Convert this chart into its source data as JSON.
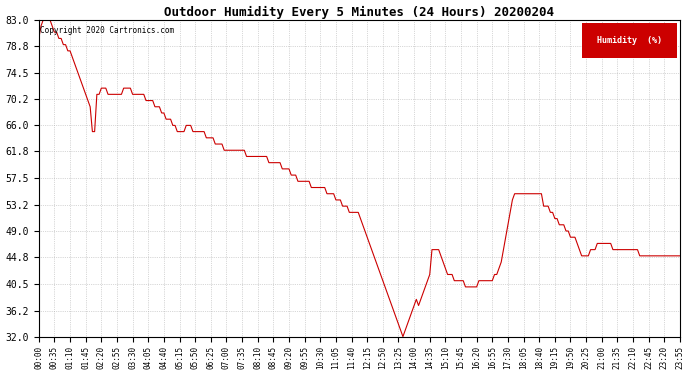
{
  "title": "Outdoor Humidity Every 5 Minutes (24 Hours) 20200204",
  "copyright_text": "Copyright 2020 Cartronics.com",
  "legend_label": "Humidity  (%)",
  "legend_color": "#cc0000",
  "line_color": "#cc0000",
  "background_color": "#ffffff",
  "grid_color": "#aaaaaa",
  "ylim": [
    32.0,
    83.0
  ],
  "yticks": [
    32.0,
    36.2,
    40.5,
    44.8,
    49.0,
    53.2,
    57.5,
    61.8,
    66.0,
    70.2,
    74.5,
    78.8,
    83.0
  ],
  "x_tick_step": 7,
  "humidity_data": [
    80,
    82,
    83,
    83,
    83,
    83,
    82,
    81,
    81,
    80,
    80,
    79,
    79,
    78,
    78,
    77,
    76,
    75,
    74,
    73,
    72,
    71,
    70,
    69,
    65,
    65,
    71,
    71,
    72,
    72,
    72,
    71,
    71,
    71,
    71,
    71,
    71,
    71,
    72,
    72,
    72,
    72,
    71,
    71,
    71,
    71,
    71,
    71,
    70,
    70,
    70,
    70,
    69,
    69,
    69,
    68,
    68,
    67,
    67,
    67,
    66,
    66,
    65,
    65,
    65,
    65,
    66,
    66,
    66,
    65,
    65,
    65,
    65,
    65,
    65,
    64,
    64,
    64,
    64,
    63,
    63,
    63,
    63,
    62,
    62,
    62,
    62,
    62,
    62,
    62,
    62,
    62,
    62,
    61,
    61,
    61,
    61,
    61,
    61,
    61,
    61,
    61,
    61,
    60,
    60,
    60,
    60,
    60,
    60,
    59,
    59,
    59,
    59,
    58,
    58,
    58,
    57,
    57,
    57,
    57,
    57,
    57,
    56,
    56,
    56,
    56,
    56,
    56,
    56,
    55,
    55,
    55,
    55,
    54,
    54,
    54,
    53,
    53,
    53,
    52,
    52,
    52,
    52,
    52,
    51,
    50,
    49,
    48,
    47,
    46,
    45,
    44,
    43,
    42,
    41,
    40,
    39,
    38,
    37,
    36,
    35,
    34,
    33,
    32,
    33,
    34,
    35,
    36,
    37,
    38,
    37,
    38,
    39,
    40,
    41,
    42,
    46,
    46,
    46,
    46,
    45,
    44,
    43,
    42,
    42,
    42,
    41,
    41,
    41,
    41,
    41,
    40,
    40,
    40,
    40,
    40,
    40,
    41,
    41,
    41,
    41,
    41,
    41,
    41,
    42,
    42,
    43,
    44,
    46,
    48,
    50,
    52,
    54,
    55,
    55,
    55,
    55,
    55,
    55,
    55,
    55,
    55,
    55,
    55,
    55,
    55,
    53,
    53,
    53,
    52,
    52,
    51,
    51,
    50,
    50,
    50,
    49,
    49,
    48,
    48,
    48,
    47,
    46,
    45,
    45,
    45,
    45,
    46,
    46,
    46,
    47,
    47,
    47,
    47,
    47,
    47,
    47,
    46,
    46,
    46,
    46,
    46,
    46,
    46,
    46,
    46,
    46,
    46,
    46,
    45,
    45,
    45,
    45,
    45,
    45,
    45,
    45,
    45,
    45,
    45,
    45,
    45,
    45,
    45,
    45,
    45,
    45,
    45
  ]
}
